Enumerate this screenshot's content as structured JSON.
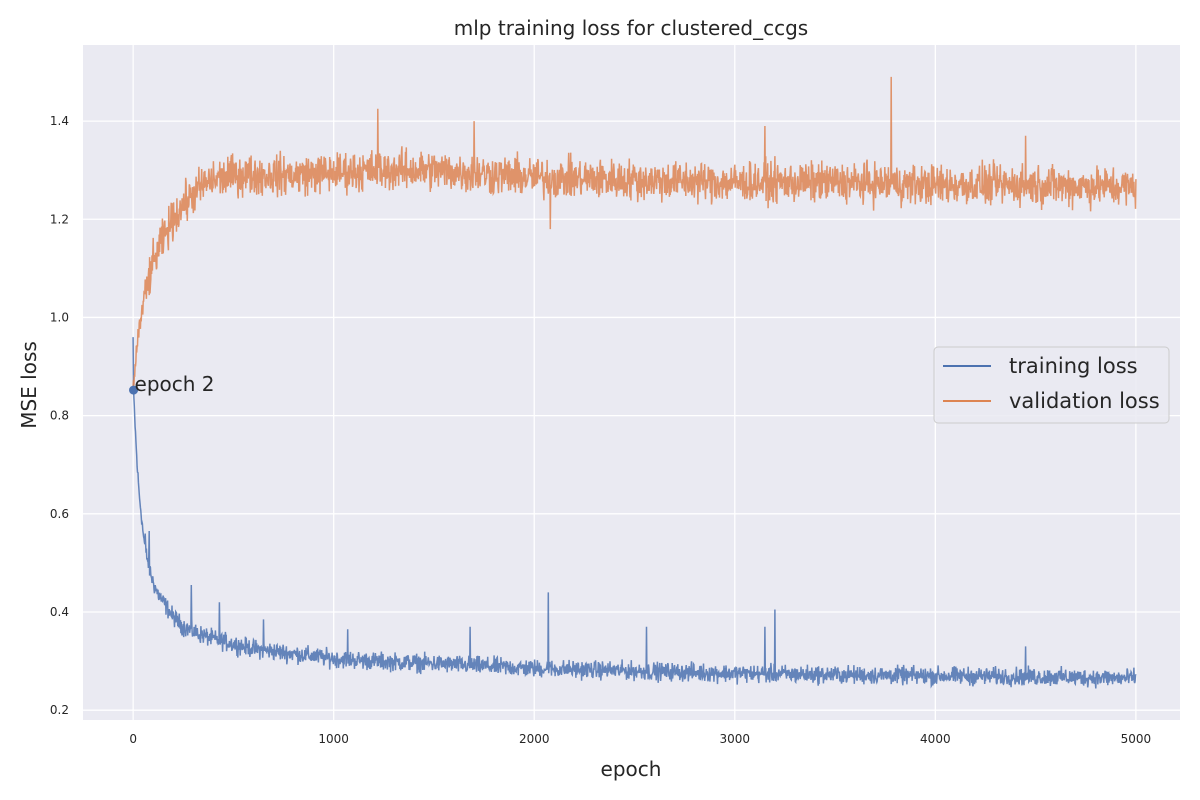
{
  "chart_data": {
    "type": "line",
    "title": "mlp training loss for clustered_ccgs",
    "xlabel": "epoch",
    "ylabel": "MSE loss",
    "xlim": [
      -250,
      5220
    ],
    "ylim": [
      0.18,
      1.555
    ],
    "xticks": [
      0,
      1000,
      2000,
      3000,
      4000,
      5000
    ],
    "xtick_labels": [
      "0",
      "1000",
      "2000",
      "3000",
      "4000",
      "5000"
    ],
    "yticks": [
      0.2,
      0.4,
      0.6,
      0.8,
      1.0,
      1.2,
      1.4
    ],
    "ytick_labels": [
      "0.2",
      "0.4",
      "0.6",
      "0.8",
      "1.0",
      "1.2",
      "1.4"
    ],
    "grid": true,
    "legend_position": "center-right",
    "background_color": "#EAEAF2",
    "series": [
      {
        "name": "training loss",
        "color": "#4C72B0",
        "x": [
          0,
          2,
          10,
          20,
          30,
          40,
          50,
          60,
          80,
          100,
          120,
          150,
          200,
          250,
          300,
          400,
          500,
          600,
          800,
          1000,
          1200,
          1500,
          2000,
          2500,
          3000,
          3500,
          4000,
          4500,
          5000
        ],
        "y": [
          0.96,
          0.85,
          0.78,
          0.7,
          0.64,
          0.6,
          0.56,
          0.53,
          0.49,
          0.46,
          0.44,
          0.42,
          0.39,
          0.37,
          0.36,
          0.345,
          0.335,
          0.325,
          0.315,
          0.305,
          0.3,
          0.295,
          0.285,
          0.28,
          0.275,
          0.272,
          0.27,
          0.268,
          0.265
        ],
        "spikes": [
          [
            60,
            0.56
          ],
          [
            80,
            0.565
          ],
          [
            290,
            0.455
          ],
          [
            430,
            0.42
          ],
          [
            650,
            0.385
          ],
          [
            1070,
            0.365
          ],
          [
            1680,
            0.37
          ],
          [
            2070,
            0.44
          ],
          [
            2560,
            0.37
          ],
          [
            3150,
            0.37
          ],
          [
            3200,
            0.405
          ],
          [
            4450,
            0.33
          ]
        ]
      },
      {
        "name": "validation loss",
        "color": "#DD8452",
        "x": [
          0,
          2,
          10,
          20,
          40,
          60,
          80,
          100,
          150,
          200,
          250,
          300,
          350,
          400,
          450,
          500,
          600,
          800,
          1000,
          1200,
          1500,
          2000,
          2500,
          3000,
          3500,
          4000,
          4500,
          5000
        ],
        "y": [
          0.86,
          0.85,
          0.9,
          0.95,
          1.0,
          1.05,
          1.08,
          1.11,
          1.16,
          1.2,
          1.23,
          1.25,
          1.27,
          1.28,
          1.285,
          1.29,
          1.29,
          1.29,
          1.295,
          1.3,
          1.3,
          1.285,
          1.28,
          1.275,
          1.275,
          1.27,
          1.27,
          1.265
        ],
        "spikes": [
          [
            1220,
            1.425
          ],
          [
            1700,
            1.4
          ],
          [
            2080,
            1.18
          ],
          [
            3780,
            1.49
          ],
          [
            3150,
            1.39
          ],
          [
            4450,
            1.37
          ]
        ]
      }
    ],
    "annotations": [
      {
        "text": "epoch 2",
        "x": 2,
        "y": 0.852
      }
    ]
  }
}
